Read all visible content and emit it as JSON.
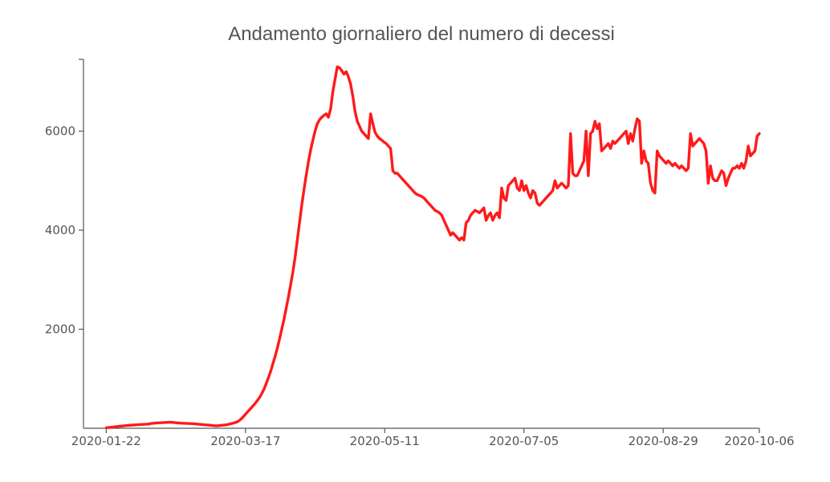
{
  "chart_data": {
    "type": "line",
    "title": "Andamento giornaliero del numero di decessi",
    "xlabel": "",
    "ylabel": "",
    "x_start": "2020-01-22",
    "x_end": "2020-10-06",
    "xlim": [
      "2020-01-13",
      "2020-10-06"
    ],
    "ylim": [
      0,
      7450
    ],
    "x_ticks": [
      "2020-01-22",
      "2020-03-17",
      "2020-05-11",
      "2020-07-05",
      "2020-08-29",
      "2020-10-06"
    ],
    "y_ticks": [
      2000,
      4000,
      6000
    ],
    "grid": false,
    "legend": "none",
    "line_color": "#ff1a1a",
    "series": [
      {
        "values": [
          12,
          15,
          20,
          25,
          30,
          35,
          40,
          45,
          50,
          55,
          58,
          62,
          65,
          68,
          72,
          75,
          78,
          80,
          82,
          85,
          95,
          100,
          105,
          108,
          110,
          112,
          115,
          118,
          120,
          122,
          118,
          112,
          108,
          105,
          102,
          100,
          98,
          96,
          94,
          92,
          88,
          84,
          80,
          76,
          72,
          68,
          64,
          60,
          55,
          50,
          50,
          55,
          60,
          65,
          70,
          80,
          90,
          100,
          115,
          130,
          160,
          200,
          250,
          300,
          350,
          400,
          450,
          500,
          560,
          620,
          700,
          790,
          900,
          1020,
          1150,
          1300,
          1450,
          1620,
          1800,
          2000,
          2200,
          2420,
          2650,
          2900,
          3150,
          3450,
          3800,
          4150,
          4500,
          4820,
          5100,
          5380,
          5620,
          5820,
          6000,
          6150,
          6230,
          6280,
          6320,
          6350,
          6280,
          6450,
          6800,
          7050,
          7300,
          7280,
          7220,
          7150,
          7200,
          7100,
          6950,
          6700,
          6400,
          6200,
          6100,
          6000,
          5950,
          5900,
          5850,
          6350,
          6150,
          5980,
          5900,
          5850,
          5820,
          5780,
          5750,
          5700,
          5650,
          5200,
          5150,
          5150,
          5100,
          5050,
          5000,
          4950,
          4900,
          4850,
          4800,
          4750,
          4720,
          4700,
          4680,
          4650,
          4600,
          4550,
          4500,
          4450,
          4400,
          4380,
          4350,
          4300,
          4200,
          4100,
          4000,
          3900,
          3950,
          3900,
          3850,
          3800,
          3850,
          3800,
          4150,
          4200,
          4300,
          4350,
          4400,
          4380,
          4350,
          4400,
          4450,
          4200,
          4300,
          4350,
          4200,
          4300,
          4350,
          4250,
          4850,
          4650,
          4600,
          4900,
          4950,
          5000,
          5050,
          4850,
          4800,
          5000,
          4800,
          4900,
          4750,
          4650,
          4800,
          4750,
          4550,
          4500,
          4550,
          4600,
          4650,
          4700,
          4750,
          4800,
          5000,
          4850,
          4900,
          4950,
          4900,
          4850,
          4900,
          5950,
          5150,
          5100,
          5100,
          5200,
          5300,
          5400,
          6000,
          5100,
          5950,
          6000,
          6200,
          6050,
          6150,
          5600,
          5650,
          5700,
          5750,
          5650,
          5800,
          5750,
          5800,
          5850,
          5900,
          5950,
          6000,
          5750,
          5950,
          5800,
          6050,
          6250,
          6200,
          5350,
          5600,
          5400,
          5350,
          4950,
          4800,
          4750,
          5600,
          5500,
          5450,
          5400,
          5350,
          5400,
          5350,
          5300,
          5350,
          5300,
          5250,
          5300,
          5250,
          5200,
          5250,
          5950,
          5700,
          5750,
          5800,
          5850,
          5800,
          5750,
          5600,
          4950,
          5300,
          5050,
          5000,
          5000,
          5100,
          5200,
          5150,
          4900,
          5050,
          5150,
          5250,
          5250,
          5300,
          5250,
          5350,
          5250,
          5400,
          5700,
          5500,
          5550,
          5600,
          5900,
          5950
        ]
      }
    ]
  }
}
